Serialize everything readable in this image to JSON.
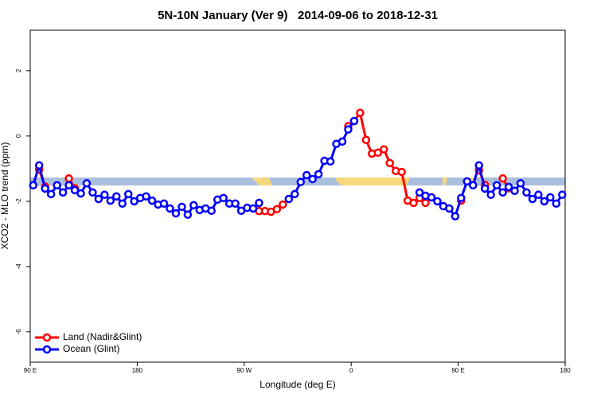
{
  "chart_data": {
    "type": "line",
    "title": "5N-10N January (Ver 9)   2014-09-06 to 2018-12-31",
    "xlabel": "Longitude (deg E)",
    "ylabel": "XCO2 - MLO trend (ppm)",
    "x": [
      92.5,
      97.5,
      102.5,
      107.5,
      112.5,
      117.5,
      122.5,
      127.5,
      132.5,
      137.5,
      142.5,
      147.5,
      152.5,
      157.5,
      162.5,
      167.5,
      172.5,
      177.5,
      182.5,
      187.5,
      192.5,
      197.5,
      202.5,
      207.5,
      212.5,
      217.5,
      222.5,
      227.5,
      232.5,
      237.5,
      242.5,
      247.5,
      252.5,
      257.5,
      262.5,
      267.5,
      272.5,
      277.5,
      282.5,
      287.5,
      292.5,
      297.5,
      302.5,
      307.5,
      312.5,
      317.5,
      322.5,
      327.5,
      332.5,
      337.5,
      342.5,
      347.5,
      352.5,
      357.5,
      362.5,
      367.5,
      372.5,
      377.5,
      382.5,
      387.5,
      392.5,
      397.5,
      402.5,
      407.5,
      412.5,
      417.5,
      422.5,
      427.5,
      432.5,
      437.5,
      442.5,
      447.5,
      452.5,
      457.5,
      462.5,
      467.5,
      472.5,
      477.5,
      482.5,
      487.5,
      492.5,
      497.5,
      502.5,
      507.5,
      512.5,
      517.5,
      522.5,
      527.5,
      532.5,
      537.5
    ],
    "series": [
      {
        "name": "Land (Nadir&Glint)",
        "color": "#ff0000",
        "values": [
          null,
          -1.03,
          -1.55,
          null,
          null,
          null,
          -1.3,
          -1.6,
          null,
          null,
          null,
          null,
          null,
          null,
          null,
          null,
          null,
          null,
          null,
          null,
          null,
          null,
          null,
          null,
          null,
          null,
          null,
          null,
          null,
          null,
          null,
          null,
          null,
          null,
          null,
          null,
          null,
          null,
          -2.3,
          -2.3,
          -2.32,
          -2.24,
          -2.1,
          null,
          null,
          null,
          null,
          null,
          null,
          null,
          null,
          null,
          null,
          0.3,
          0.46,
          0.71,
          -0.12,
          -0.54,
          -0.51,
          -0.41,
          -0.83,
          -1.07,
          -1.1,
          -1.98,
          -2.05,
          -1.9,
          -2.05,
          null,
          null,
          null,
          null,
          null,
          -1.98,
          null,
          null,
          -1.05,
          -1.5,
          null,
          null,
          -1.3,
          -1.6,
          null,
          null,
          null,
          null,
          null,
          null,
          null,
          null,
          null
        ]
      },
      {
        "name": "Ocean (Glint)",
        "color": "#0000ff",
        "values": [
          -1.51,
          -0.9,
          -1.61,
          -1.78,
          -1.51,
          -1.73,
          -1.51,
          -1.66,
          -1.76,
          -1.45,
          -1.73,
          -1.93,
          -1.8,
          -1.98,
          -1.85,
          -2.07,
          -1.78,
          -2.0,
          -1.9,
          -1.85,
          -1.98,
          -2.1,
          -2.07,
          -2.22,
          -2.37,
          -2.17,
          -2.41,
          -2.12,
          -2.27,
          -2.22,
          -2.29,
          -1.95,
          -1.9,
          -2.07,
          -2.07,
          -2.29,
          -2.2,
          -2.22,
          -2.05,
          null,
          null,
          null,
          null,
          -1.93,
          -1.78,
          -1.41,
          -1.2,
          -1.32,
          -1.17,
          -0.76,
          -0.78,
          -0.24,
          -0.17,
          0.2,
          0.46,
          null,
          null,
          null,
          null,
          null,
          null,
          null,
          null,
          null,
          null,
          -1.73,
          -1.83,
          -1.88,
          -2.0,
          -2.15,
          -2.22,
          -2.46,
          -1.9,
          -1.39,
          -1.51,
          -0.9,
          -1.61,
          -1.8,
          -1.51,
          -1.73,
          -1.56,
          -1.68,
          -1.45,
          -1.73,
          -1.93,
          -1.8,
          -2.0,
          -1.88,
          -2.07,
          -1.8
        ]
      }
    ],
    "xlim": [
      90,
      540
    ],
    "ylim": [
      -6.93,
      3.24
    ],
    "xticks": [
      {
        "value": 90,
        "label": "90 E"
      },
      180,
      {
        "value": 270,
        "label": "90 W"
      },
      {
        "value": 360,
        "label": "0"
      },
      {
        "value": 450,
        "label": "90 E"
      },
      {
        "value": 540,
        "label": "180"
      }
    ],
    "yticks": [
      2,
      0,
      -2,
      -4,
      -6
    ],
    "legend": "bottomleft"
  }
}
